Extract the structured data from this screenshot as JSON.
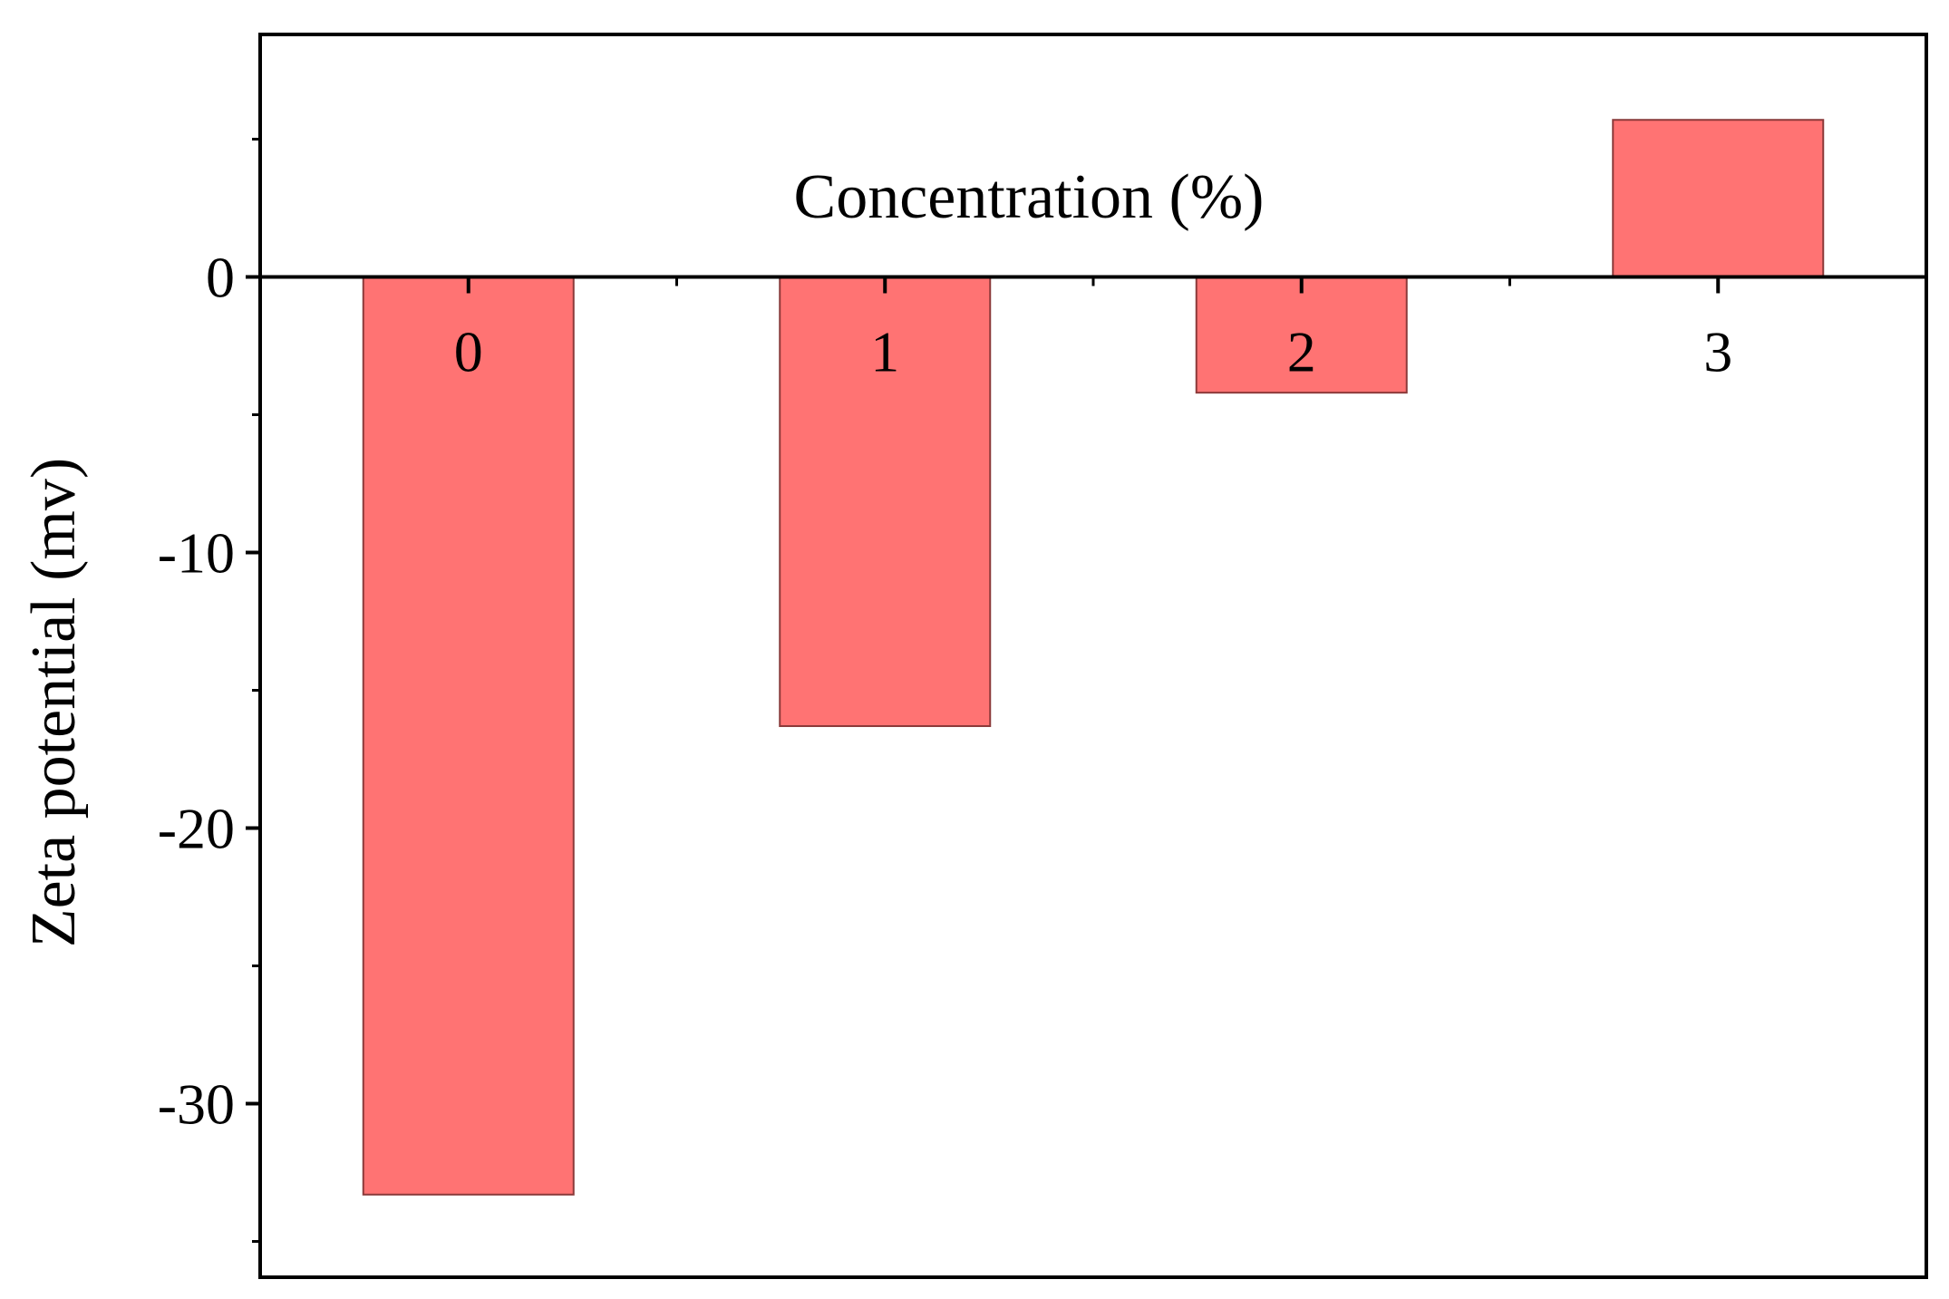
{
  "chart_data": {
    "type": "bar",
    "categories": [
      "0",
      "1",
      "2",
      "3"
    ],
    "values": [
      -33.3,
      -16.3,
      -4.2,
      5.7
    ],
    "xlabel": "Concentration (%)",
    "ylabel": "Zeta potential (mv)",
    "ylim": [
      -36.3,
      8.8
    ],
    "yticks": [
      0,
      -10,
      -20,
      -30
    ],
    "ytick_labels": [
      "0",
      "-10",
      "-20",
      "-30"
    ],
    "bar_color": "#ff7373",
    "bar_edge_color": "#8b3a3a",
    "grid": false,
    "legend": "none"
  }
}
